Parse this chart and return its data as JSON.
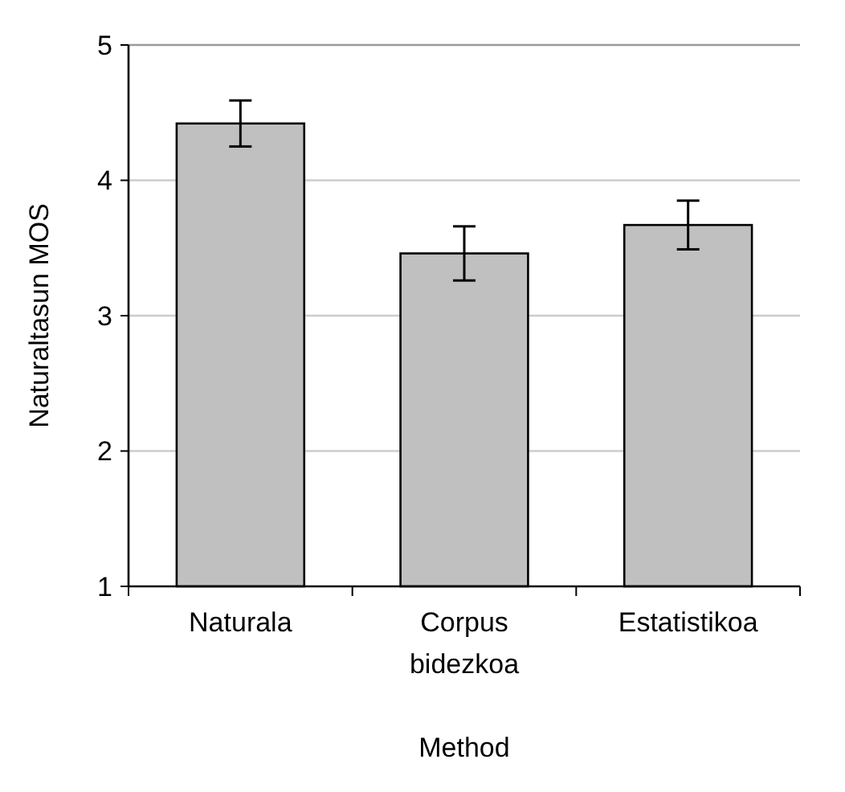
{
  "chart_data": {
    "type": "bar",
    "xlabel": "Method",
    "ylabel": "Naturaltasun MOS",
    "categories": [
      "Naturala",
      "Corpus bidezkoa",
      "Estatistikoa"
    ],
    "values": [
      4.42,
      3.46,
      3.67
    ],
    "errors": [
      0.17,
      0.2,
      0.18
    ],
    "color": "#c0c0c0",
    "ylim": [
      1,
      5
    ],
    "yticks": [
      1,
      2,
      3,
      4,
      5
    ],
    "grid": "y"
  }
}
